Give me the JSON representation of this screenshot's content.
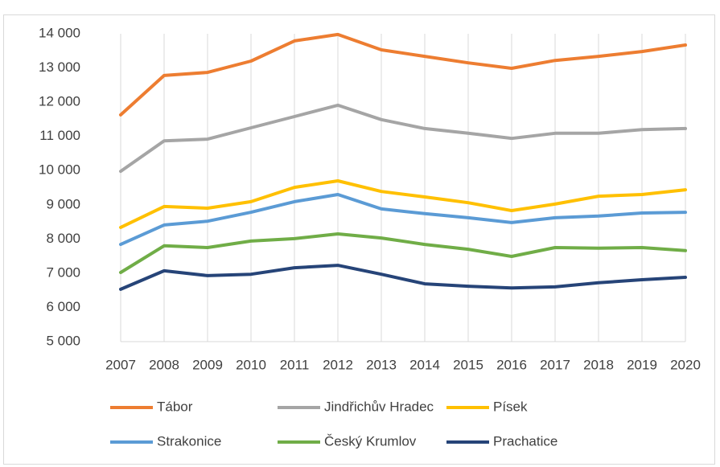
{
  "chart_data": {
    "type": "line",
    "categories": [
      "2007",
      "2008",
      "2009",
      "2010",
      "2011",
      "2012",
      "2013",
      "2014",
      "2015",
      "2016",
      "2017",
      "2018",
      "2019",
      "2020"
    ],
    "series": [
      {
        "name": "Tábor",
        "color": "#ed7d31",
        "values": [
          11630,
          12780,
          12870,
          13200,
          13790,
          13980,
          13530,
          13340,
          13150,
          12990,
          13220,
          13340,
          13480,
          13670
        ]
      },
      {
        "name": "Jindřichův Hradec",
        "color": "#a5a5a5",
        "values": [
          9980,
          10870,
          10920,
          11250,
          11580,
          11910,
          11490,
          11230,
          11090,
          10940,
          11090,
          11090,
          11200,
          11230
        ]
      },
      {
        "name": "Písek",
        "color": "#ffc000",
        "values": [
          8340,
          8950,
          8900,
          9090,
          9510,
          9700,
          9390,
          9230,
          9060,
          8830,
          9020,
          9250,
          9300,
          9440
        ]
      },
      {
        "name": "Strakonice",
        "color": "#5b9bd5",
        "values": [
          7840,
          8410,
          8520,
          8780,
          9090,
          9300,
          8880,
          8740,
          8620,
          8480,
          8620,
          8670,
          8760,
          8780
        ]
      },
      {
        "name": "Český Krumlov",
        "color": "#70ad47",
        "values": [
          7020,
          7800,
          7750,
          7940,
          8010,
          8150,
          8030,
          7840,
          7700,
          7490,
          7750,
          7730,
          7750,
          7660
        ]
      },
      {
        "name": "Prachatice",
        "color": "#264478",
        "values": [
          6530,
          7070,
          6930,
          6970,
          7160,
          7230,
          6970,
          6690,
          6620,
          6570,
          6600,
          6720,
          6810,
          6880
        ]
      }
    ],
    "ylim": [
      5000,
      14000
    ],
    "yticks": [
      {
        "value": 5000,
        "label": "5 000"
      },
      {
        "value": 6000,
        "label": "6 000"
      },
      {
        "value": 7000,
        "label": "7 000"
      },
      {
        "value": 8000,
        "label": "8 000"
      },
      {
        "value": 9000,
        "label": "9 000"
      },
      {
        "value": 10000,
        "label": "10 000"
      },
      {
        "value": 11000,
        "label": "11 000"
      },
      {
        "value": 12000,
        "label": "12 000"
      },
      {
        "value": 13000,
        "label": "13 000"
      },
      {
        "value": 14000,
        "label": "14 000"
      }
    ],
    "grid": true,
    "legend": "bottom"
  }
}
